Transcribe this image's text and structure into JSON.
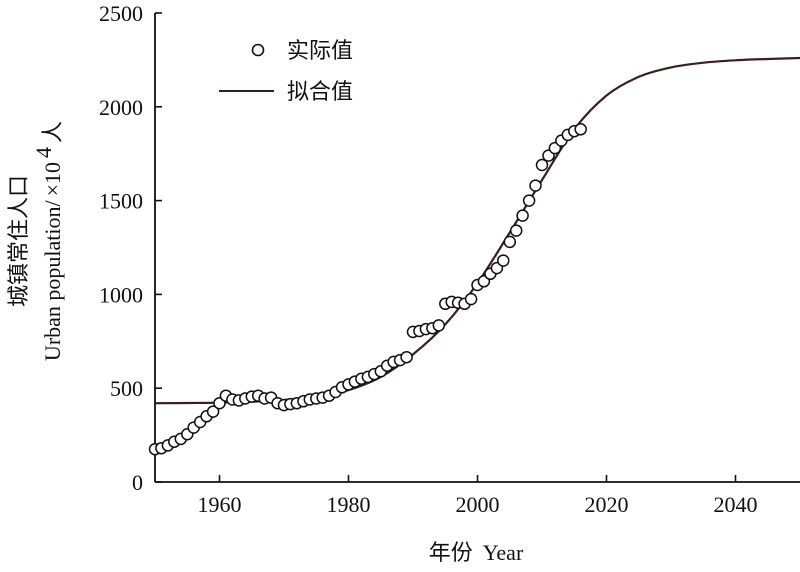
{
  "chart_data": {
    "type": "scatter",
    "xlabel_cn": "年份",
    "xlabel_en": "Year",
    "ylabel_cn": "城镇常住人口",
    "ylabel_en": "Urban population/",
    "ylabel_unit_prefix": "×10",
    "ylabel_unit_exp": "4",
    "ylabel_unit_suffix": "人",
    "xlim": [
      1950,
      2050
    ],
    "ylim": [
      0,
      2500
    ],
    "x_ticks": [
      1960,
      1980,
      2000,
      2020,
      2040
    ],
    "y_ticks": [
      0,
      500,
      1000,
      1500,
      2000,
      2500
    ],
    "legend_position": "top-left",
    "series": [
      {
        "name": "实际值",
        "kind": "markers",
        "x": [
          1950,
          1951,
          1952,
          1953,
          1954,
          1955,
          1956,
          1957,
          1958,
          1959,
          1960,
          1961,
          1962,
          1963,
          1964,
          1965,
          1966,
          1967,
          1968,
          1969,
          1970,
          1971,
          1972,
          1973,
          1974,
          1975,
          1976,
          1977,
          1978,
          1979,
          1980,
          1981,
          1982,
          1983,
          1984,
          1985,
          1986,
          1987,
          1988,
          1989,
          1990,
          1991,
          1992,
          1993,
          1994,
          1995,
          1996,
          1997,
          1998,
          1999,
          2000,
          2001,
          2002,
          2003,
          2004,
          2005,
          2006,
          2007,
          2008,
          2009,
          2010,
          2011,
          2012,
          2013,
          2014,
          2015,
          2016
        ],
        "y": [
          175,
          180,
          195,
          215,
          230,
          255,
          290,
          320,
          350,
          375,
          420,
          460,
          440,
          435,
          445,
          455,
          460,
          445,
          450,
          420,
          410,
          415,
          420,
          430,
          440,
          445,
          450,
          460,
          480,
          505,
          520,
          535,
          550,
          560,
          575,
          590,
          620,
          640,
          650,
          665,
          800,
          805,
          815,
          820,
          835,
          950,
          960,
          955,
          950,
          975,
          1050,
          1070,
          1110,
          1140,
          1180,
          1280,
          1340,
          1420,
          1500,
          1580,
          1690,
          1740,
          1780,
          1820,
          1850,
          1870,
          1880
        ]
      },
      {
        "name": "拟合值",
        "kind": "line",
        "x": [
          1950,
          1955,
          1960,
          1965,
          1970,
          1975,
          1980,
          1985,
          1990,
          1995,
          2000,
          2005,
          2010,
          2015,
          2020,
          2025,
          2030,
          2035,
          2040,
          2045,
          2050
        ],
        "y": [
          420,
          421,
          423,
          428,
          437,
          455,
          490,
          560,
          680,
          840,
          1060,
          1330,
          1610,
          1880,
          2060,
          2160,
          2210,
          2235,
          2248,
          2255,
          2260
        ]
      }
    ]
  }
}
